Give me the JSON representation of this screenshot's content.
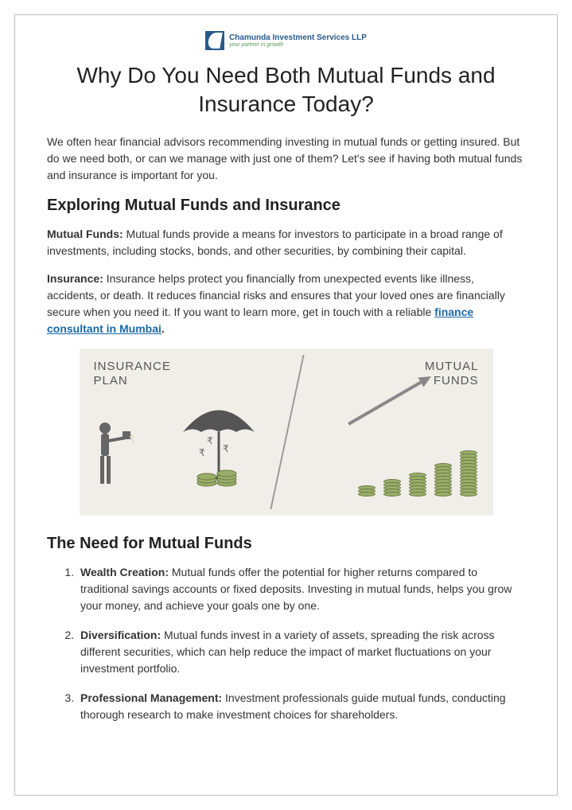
{
  "logo": {
    "company": "Chamunda Investment Services LLP",
    "tagline": "your partner in growth"
  },
  "title": "Why Do You Need Both Mutual Funds and Insurance Today?",
  "intro": "We often hear financial advisors recommending investing in mutual funds or getting insured. But do we need both, or can we manage with just one of them? Let's see if having both mutual funds and insurance is important for you.",
  "section1_heading": "Exploring Mutual Funds and Insurance",
  "mf_label": "Mutual Funds:",
  "mf_text": " Mutual funds provide a means for investors to participate in a broad range of investments, including stocks, bonds, and other securities, by combining their capital.",
  "ins_label": "Insurance:",
  "ins_text_a": " Insurance helps protect you financially from unexpected events like illness, accidents, or death. It reduces financial risks and ensures that your loved ones are financially secure when you need it. If you want to learn more, get in touch with a reliable ",
  "ins_link": "finance consultant in Mumbai",
  "ins_text_b": ".",
  "infographic": {
    "left_label_1": "INSURANCE",
    "left_label_2": "PLAN",
    "right_label_1": "MUTUAL",
    "right_label_2": "FUNDS",
    "bg_color": "#f0eee8",
    "coin_color": "#9aad6a",
    "figure_color": "#666666",
    "stack_heights": [
      3,
      5,
      7,
      10,
      14
    ]
  },
  "section2_heading": "The Need for Mutual Funds",
  "needs": [
    {
      "label": "Wealth Creation:",
      "text": " Mutual funds offer the potential for higher returns compared to traditional savings accounts or fixed deposits. Investing in mutual funds, helps you grow your money, and achieve your goals one by one."
    },
    {
      "label": "Diversification:",
      "text": " Mutual funds invest in a variety of assets, spreading the risk across different securities, which can help reduce the impact of market fluctuations on your investment portfolio."
    },
    {
      "label": "Professional Management:",
      "text": " Investment professionals guide mutual funds, conducting thorough research to make investment choices for shareholders."
    }
  ]
}
